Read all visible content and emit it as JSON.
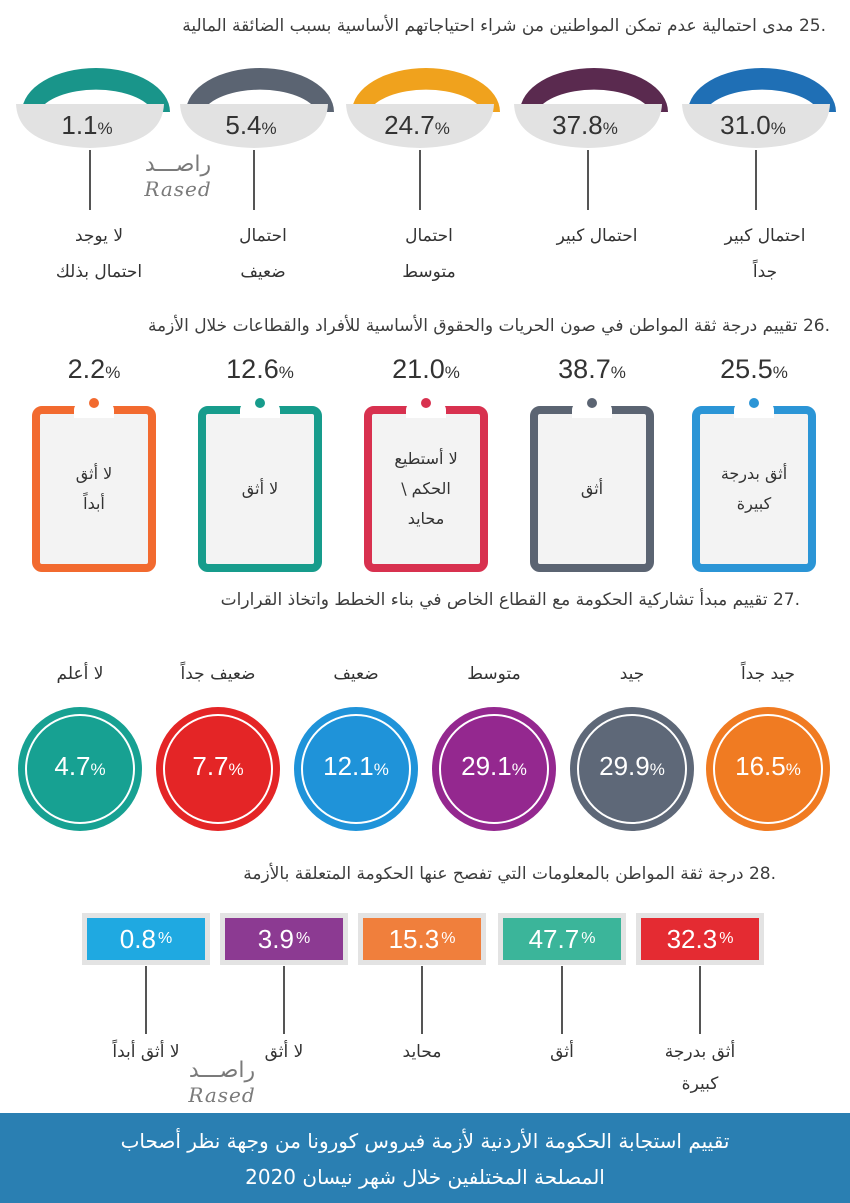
{
  "q25": {
    "title": ".25 مدى احتمالية عدم تمكن المواطنين من شراء احتياجاتهم الأساسية بسبب الضائقة المالية",
    "items": [
      {
        "value": "31.0",
        "unit": "%",
        "label": "احتمال كبير\nجداً",
        "color": "#1f6fb5"
      },
      {
        "value": "37.8",
        "unit": "%",
        "label": "احتمال كبير",
        "color": "#5a2a4f"
      },
      {
        "value": "24.7",
        "unit": "%",
        "label": "احتمال\nمتوسط",
        "color": "#f0a21d"
      },
      {
        "value": "5.4",
        "unit": "%",
        "label": "احتمال\nضعيف",
        "color": "#5b6472"
      },
      {
        "value": "1.1",
        "unit": "%",
        "label": "لا يوجد\nاحتمال بذلك",
        "color": "#19958a"
      }
    ]
  },
  "q26": {
    "title": ".26 تقييم درجة ثقة المواطن في صون الحريات والحقوق الأساسية للأفراد والقطاعات خلال الأزمة",
    "items": [
      {
        "value": "25.5",
        "unit": "%",
        "label": "أثق بدرجة\nكبيرة",
        "color": "#2b95d6"
      },
      {
        "value": "38.7",
        "unit": "%",
        "label": "أثق",
        "color": "#5b6472"
      },
      {
        "value": "21.0",
        "unit": "%",
        "label": "لا أستطيع\nالحكم \\\nمحايد",
        "color": "#d8314f"
      },
      {
        "value": "12.6",
        "unit": "%",
        "label": "لا أثق",
        "color": "#179c8c"
      },
      {
        "value": "2.2",
        "unit": "%",
        "label": "لا أثق\nأبداً",
        "color": "#f26a2f"
      }
    ]
  },
  "q27": {
    "title": ".27 تقييم مبدأ تشاركية الحكومة مع القطاع الخاص في بناء الخطط واتخاذ القرارات",
    "items": [
      {
        "value": "16.5",
        "unit": "%",
        "label": "جيد جداً",
        "color": "#f07b22"
      },
      {
        "value": "29.9",
        "unit": "%",
        "label": "جيد",
        "color": "#5e6878"
      },
      {
        "value": "29.1",
        "unit": "%",
        "label": "متوسط",
        "color": "#94288f"
      },
      {
        "value": "12.1",
        "unit": "%",
        "label": "ضعيف",
        "color": "#1f93d9"
      },
      {
        "value": "7.7",
        "unit": "%",
        "label": "ضعيف جداً",
        "color": "#e42526"
      },
      {
        "value": "4.7",
        "unit": "%",
        "label": "لا أعلم",
        "color": "#17a192"
      }
    ]
  },
  "q28": {
    "title": ".28 درجة ثقة المواطن بالمعلومات التي تفصح عنها الحكومة المتعلقة بالأزمة",
    "items": [
      {
        "value": "32.3",
        "unit": "%",
        "label": "أثق بدرجة\nكبيرة",
        "color": "#e42b32"
      },
      {
        "value": "47.7",
        "unit": "%",
        "label": "أثق",
        "color": "#3bb59a"
      },
      {
        "value": "15.3",
        "unit": "%",
        "label": "محايد",
        "color": "#f07f3c"
      },
      {
        "value": "3.9",
        "unit": "%",
        "label": "لا أثق",
        "color": "#8c3a92"
      },
      {
        "value": "0.8",
        "unit": "%",
        "label": "لا أثق أبداً",
        "color": "#1fa9e1"
      }
    ]
  },
  "watermark": {
    "arabic": "راصـــد",
    "latin": "Rased"
  },
  "footer": {
    "line1": "تقييم استجابة الحكومة الأردنية لأزمة فيروس كورونا من وجهة نظر أصحاب",
    "line2": "المصلحة المختلفين خلال شهر نيسان 2020"
  }
}
